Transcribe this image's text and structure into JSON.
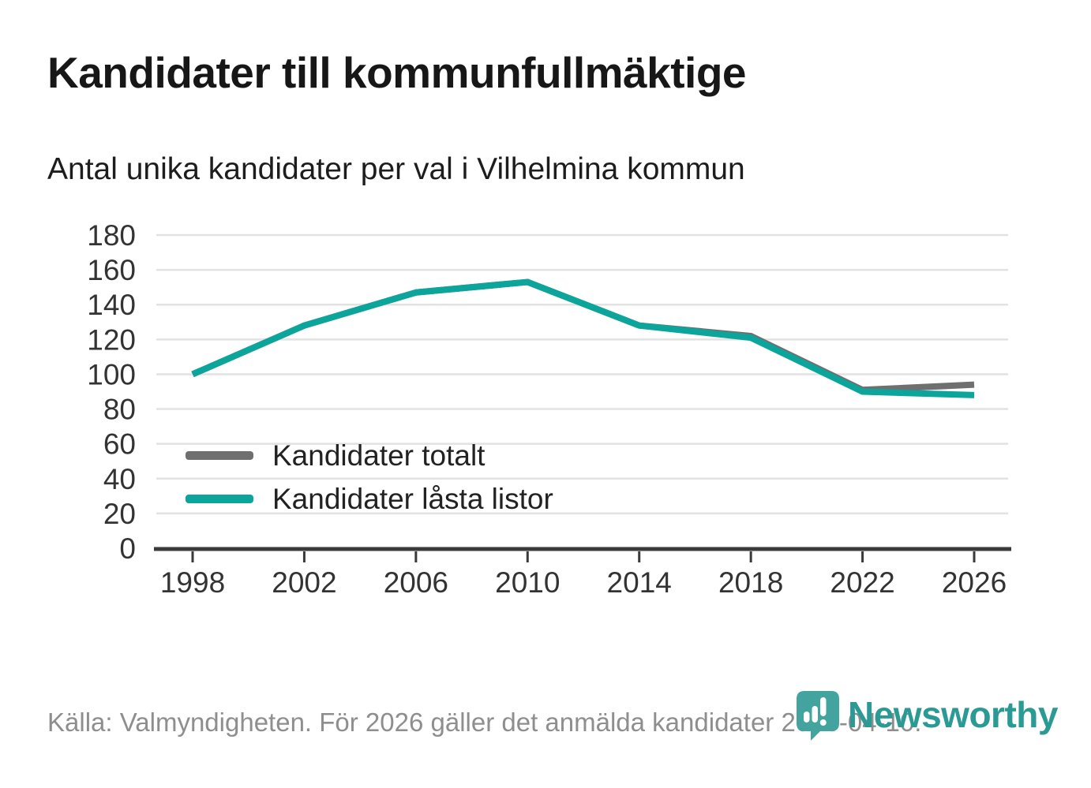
{
  "title": "Kandidater till kommunfullmäktige",
  "subtitle": "Antal unika kandidater per val i Vilhelmina kommun",
  "source_note": "Källa: Valmyndigheten. För 2026 gäller det anmälda kandidater 2026-04-10.",
  "branding": {
    "wordmark": "Newsworthy",
    "wordmark_color": "#2b9a94",
    "pin_color": "#43a49f",
    "icon": "newsworthy-pin-icon"
  },
  "chart_data": {
    "type": "line",
    "title": "Kandidater till kommunfullmäktige",
    "subtitle": "Antal unika kandidater per val i Vilhelmina kommun",
    "categories": [
      "1998",
      "2002",
      "2006",
      "2010",
      "2014",
      "2018",
      "2022",
      "2026"
    ],
    "series": [
      {
        "name": "Kandidater totalt",
        "color": "#6f6f6f",
        "values": [
          100,
          128,
          147,
          153,
          128,
          122,
          91,
          94
        ]
      },
      {
        "name": "Kandidater låsta listor",
        "color": "#0ba59b",
        "values": [
          100,
          128,
          147,
          153,
          128,
          121,
          90,
          88
        ]
      }
    ],
    "ylim": [
      0,
      180
    ],
    "ytick_step": 20,
    "xlabel": "",
    "ylabel": "",
    "grid": true,
    "legend_position": "inside bottom-left",
    "axis_color": "#3a3a3a",
    "grid_color": "#e2e2e2",
    "tick_label_color": "#333333"
  }
}
